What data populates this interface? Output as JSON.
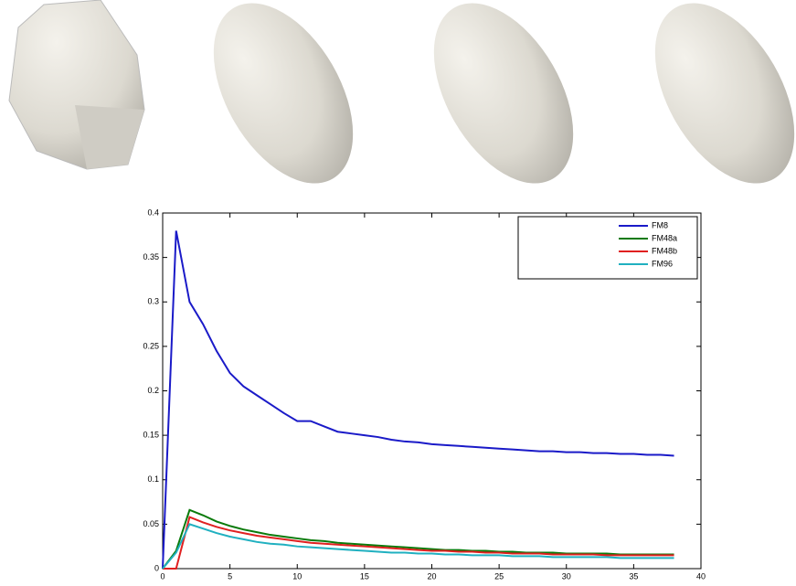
{
  "chart_data": {
    "type": "line",
    "x": [
      0,
      1,
      2,
      3,
      4,
      5,
      6,
      7,
      8,
      9,
      10,
      11,
      12,
      13,
      14,
      15,
      16,
      17,
      18,
      19,
      20,
      21,
      22,
      23,
      24,
      25,
      26,
      27,
      28,
      29,
      30,
      31,
      32,
      33,
      34,
      35,
      36,
      37,
      38
    ],
    "series": [
      {
        "name": "FM8",
        "color": "#1a1ac8",
        "values": [
          0,
          0.38,
          0.3,
          0.275,
          0.245,
          0.22,
          0.205,
          0.195,
          0.185,
          0.175,
          0.166,
          0.166,
          0.16,
          0.154,
          0.152,
          0.15,
          0.148,
          0.145,
          0.143,
          0.142,
          0.14,
          0.139,
          0.138,
          0.137,
          0.136,
          0.135,
          0.134,
          0.133,
          0.132,
          0.132,
          0.131,
          0.131,
          0.13,
          0.13,
          0.129,
          0.129,
          0.128,
          0.128,
          0.127
        ]
      },
      {
        "name": "FM48a",
        "color": "#0a7a0a",
        "values": [
          0,
          0.02,
          0.066,
          0.06,
          0.053,
          0.048,
          0.044,
          0.041,
          0.038,
          0.036,
          0.034,
          0.032,
          0.031,
          0.029,
          0.028,
          0.027,
          0.026,
          0.025,
          0.024,
          0.023,
          0.022,
          0.021,
          0.021,
          0.02,
          0.02,
          0.019,
          0.019,
          0.018,
          0.018,
          0.018,
          0.017,
          0.017,
          0.017,
          0.017,
          0.016,
          0.016,
          0.016,
          0.016,
          0.016
        ]
      },
      {
        "name": "FM48b",
        "color": "#e02020",
        "values": [
          0,
          0,
          0.058,
          0.052,
          0.047,
          0.043,
          0.04,
          0.037,
          0.035,
          0.033,
          0.031,
          0.029,
          0.028,
          0.027,
          0.026,
          0.025,
          0.024,
          0.023,
          0.022,
          0.021,
          0.02,
          0.02,
          0.019,
          0.019,
          0.018,
          0.018,
          0.017,
          0.017,
          0.017,
          0.016,
          0.016,
          0.016,
          0.016,
          0.015,
          0.015,
          0.015,
          0.015,
          0.015,
          0.015
        ]
      },
      {
        "name": "FM96",
        "color": "#20b0c0",
        "values": [
          0,
          0.018,
          0.05,
          0.045,
          0.04,
          0.036,
          0.033,
          0.03,
          0.028,
          0.027,
          0.025,
          0.024,
          0.023,
          0.022,
          0.021,
          0.02,
          0.019,
          0.018,
          0.018,
          0.017,
          0.017,
          0.016,
          0.016,
          0.015,
          0.015,
          0.015,
          0.014,
          0.014,
          0.014,
          0.013,
          0.013,
          0.013,
          0.013,
          0.013,
          0.012,
          0.012,
          0.012,
          0.012,
          0.012
        ]
      }
    ],
    "xlim": [
      0,
      40
    ],
    "xticks": [
      0,
      5,
      10,
      15,
      20,
      25,
      30,
      35,
      40
    ],
    "ylim": [
      0,
      0.4
    ],
    "yticks": [
      0,
      0.05,
      0.1,
      0.15,
      0.2,
      0.25,
      0.3,
      0.35,
      0.4
    ],
    "legend": "upper right"
  }
}
